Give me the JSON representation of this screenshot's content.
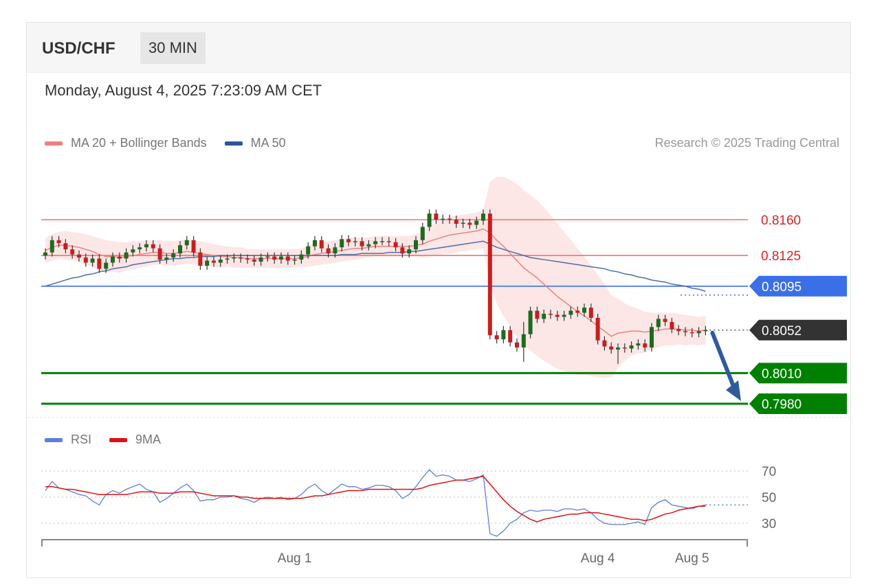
{
  "header": {
    "pair": "USD/CHF",
    "interval": "30 MIN",
    "datetime": "Monday, August 4, 2025 7:23:09 AM CET"
  },
  "legend": {
    "main": [
      {
        "label": "MA 20 + Bollinger Bands",
        "color": "#f08080"
      },
      {
        "label": "MA 50",
        "color": "#2f5597"
      }
    ],
    "rsi": [
      {
        "label": "RSI",
        "color": "#5b7fe0"
      },
      {
        "label": "9MA",
        "color": "#e01010"
      }
    ]
  },
  "credit": "Research © 2025 Trading Central",
  "colors": {
    "up_candle": "#1e6b1e",
    "down_candle": "#c81e1e",
    "ma20": "#f08080",
    "band": "#fde3e3",
    "ma50": "#4a6fa5",
    "resistance": "#f07070",
    "pivot": "#3a6fe8",
    "support": "#008000",
    "current": "#333333",
    "arrow": "#2f5a9c",
    "rsi": "#5b7fe0",
    "rsi_ma": "#e01010"
  },
  "chart_data": [
    {
      "type": "candlestick",
      "title": "USD/CHF 30 MIN",
      "ylim": [
        0.7975,
        0.8185
      ],
      "levels": [
        {
          "label": "0.8160",
          "value": 0.816,
          "kind": "resistance"
        },
        {
          "label": "0.8125",
          "value": 0.8125,
          "kind": "resistance"
        },
        {
          "label": "0.8095",
          "value": 0.8095,
          "kind": "pivot"
        },
        {
          "label": "0.8052",
          "value": 0.8052,
          "kind": "current"
        },
        {
          "label": "0.8010",
          "value": 0.801,
          "kind": "support"
        },
        {
          "label": "0.7980",
          "value": 0.798,
          "kind": "support"
        }
      ],
      "candle_close": [
        0.8128,
        0.814,
        0.8137,
        0.8131,
        0.8126,
        0.8123,
        0.8118,
        0.8122,
        0.8112,
        0.8118,
        0.8124,
        0.8122,
        0.8128,
        0.8131,
        0.8133,
        0.8136,
        0.8132,
        0.8121,
        0.8123,
        0.8127,
        0.8135,
        0.814,
        0.8128,
        0.8115,
        0.812,
        0.8118,
        0.8121,
        0.8122,
        0.8123,
        0.8122,
        0.8121,
        0.8119,
        0.8123,
        0.8124,
        0.8121,
        0.8124,
        0.812,
        0.8121,
        0.8126,
        0.8134,
        0.814,
        0.8132,
        0.8127,
        0.8133,
        0.8141,
        0.8138,
        0.8139,
        0.8134,
        0.8136,
        0.8139,
        0.8139,
        0.8138,
        0.8133,
        0.8127,
        0.8131,
        0.814,
        0.8153,
        0.8166,
        0.816,
        0.8161,
        0.816,
        0.8156,
        0.8157,
        0.8155,
        0.8159,
        0.8166,
        0.8047,
        0.8043,
        0.8052,
        0.804,
        0.8035,
        0.8048,
        0.8071,
        0.8063,
        0.8068,
        0.8067,
        0.8065,
        0.8067,
        0.8071,
        0.8069,
        0.8074,
        0.8064,
        0.8042,
        0.8036,
        0.8033,
        0.8035,
        0.8034,
        0.8037,
        0.8039,
        0.8035,
        0.8055,
        0.8063,
        0.806,
        0.8053,
        0.8051,
        0.805,
        0.8049,
        0.8051,
        0.8052
      ],
      "ma20": [
        0.813,
        0.8133,
        0.8135,
        0.8135,
        0.8134,
        0.8133,
        0.8131,
        0.8129,
        0.8126,
        0.8124,
        0.8124,
        0.8123,
        0.8124,
        0.8125,
        0.8126,
        0.8127,
        0.8128,
        0.8128,
        0.8127,
        0.8127,
        0.8128,
        0.8129,
        0.8128,
        0.8127,
        0.8126,
        0.8125,
        0.8124,
        0.8124,
        0.8123,
        0.8123,
        0.8122,
        0.8122,
        0.8122,
        0.8122,
        0.8122,
        0.8122,
        0.8122,
        0.8122,
        0.8123,
        0.8124,
        0.8126,
        0.8127,
        0.8128,
        0.8129,
        0.813,
        0.8131,
        0.8132,
        0.8132,
        0.8133,
        0.8134,
        0.8134,
        0.8134,
        0.8134,
        0.8134,
        0.8134,
        0.8135,
        0.8136,
        0.8139,
        0.8141,
        0.8143,
        0.8145,
        0.8146,
        0.8147,
        0.8148,
        0.8149,
        0.8151,
        0.8147,
        0.814,
        0.8134,
        0.8127,
        0.812,
        0.8113,
        0.8108,
        0.8103,
        0.8097,
        0.8091,
        0.8085,
        0.808,
        0.8075,
        0.807,
        0.8066,
        0.8061,
        0.8056,
        0.8051,
        0.8046,
        0.8049,
        0.805,
        0.8051,
        0.8051,
        0.805,
        0.8051,
        0.8052,
        0.8053,
        0.8053,
        0.8053,
        0.8052,
        0.8052,
        0.8051,
        0.8052
      ],
      "ma50": [
        0.8095,
        0.8097,
        0.8099,
        0.8101,
        0.8103,
        0.8104,
        0.8106,
        0.8107,
        0.8109,
        0.811,
        0.8112,
        0.8113,
        0.8114,
        0.8116,
        0.8117,
        0.8118,
        0.8119,
        0.812,
        0.8121,
        0.8122,
        0.8122,
        0.8123,
        0.8123,
        0.8124,
        0.8124,
        0.8124,
        0.8125,
        0.8125,
        0.8125,
        0.8125,
        0.8125,
        0.8125,
        0.8125,
        0.8125,
        0.8125,
        0.8125,
        0.8125,
        0.8125,
        0.8125,
        0.8125,
        0.8125,
        0.8125,
        0.8125,
        0.8125,
        0.8126,
        0.8126,
        0.8126,
        0.8127,
        0.8127,
        0.8127,
        0.8127,
        0.8128,
        0.8128,
        0.8128,
        0.8129,
        0.8129,
        0.813,
        0.8131,
        0.8132,
        0.8133,
        0.8134,
        0.8135,
        0.8136,
        0.8137,
        0.8138,
        0.8139,
        0.8136,
        0.8133,
        0.8131,
        0.8129,
        0.8127,
        0.8125,
        0.8123,
        0.8122,
        0.8121,
        0.812,
        0.8119,
        0.8118,
        0.8117,
        0.8116,
        0.8115,
        0.8114,
        0.8113,
        0.8112,
        0.811,
        0.8109,
        0.8107,
        0.8106,
        0.8104,
        0.8103,
        0.8101,
        0.81,
        0.8099,
        0.8097,
        0.8096,
        0.8095,
        0.8093,
        0.8092,
        0.809
      ],
      "band_width": [
        0.0012,
        0.0013,
        0.0013,
        0.0014,
        0.0014,
        0.0014,
        0.0015,
        0.0015,
        0.0016,
        0.0016,
        0.0015,
        0.0015,
        0.0014,
        0.0014,
        0.0013,
        0.0013,
        0.0012,
        0.0012,
        0.0012,
        0.0012,
        0.0012,
        0.0012,
        0.0012,
        0.0012,
        0.0012,
        0.0011,
        0.0011,
        0.001,
        0.001,
        0.001,
        0.0009,
        0.0009,
        0.0009,
        0.0009,
        0.0009,
        0.0009,
        0.0009,
        0.0009,
        0.0009,
        0.001,
        0.0011,
        0.0011,
        0.0011,
        0.0011,
        0.0011,
        0.0011,
        0.0011,
        0.001,
        0.001,
        0.001,
        0.001,
        0.001,
        0.001,
        0.001,
        0.001,
        0.0011,
        0.0013,
        0.0015,
        0.0016,
        0.0017,
        0.0018,
        0.0018,
        0.0018,
        0.0018,
        0.0018,
        0.0019,
        0.005,
        0.0062,
        0.0068,
        0.0072,
        0.0075,
        0.0076,
        0.0076,
        0.0076,
        0.0075,
        0.0073,
        0.0071,
        0.0068,
        0.0065,
        0.0062,
        0.0058,
        0.0054,
        0.005,
        0.0046,
        0.004,
        0.0034,
        0.0028,
        0.0024,
        0.0022,
        0.002,
        0.0018,
        0.0017,
        0.0016,
        0.0016,
        0.0015,
        0.0015,
        0.0014,
        0.0014,
        0.0014
      ],
      "forecast": {
        "from": 0.8052,
        "to": 0.798
      }
    },
    {
      "type": "line",
      "title": "RSI",
      "ylim": [
        10,
        80
      ],
      "yticks": [
        70,
        50,
        30
      ],
      "x_ticks": [
        {
          "label": "Aug 1",
          "index": 37
        },
        {
          "label": "Aug 4",
          "index": 82
        },
        {
          "label": "Aug 5",
          "index": 96
        }
      ],
      "series": [
        {
          "name": "RSI",
          "values": [
            55,
            62,
            57,
            56,
            54,
            52,
            51,
            47,
            44,
            52,
            55,
            53,
            56,
            58,
            60,
            56,
            54,
            46,
            49,
            53,
            57,
            60,
            55,
            47,
            48,
            48,
            50,
            50,
            51,
            49,
            48,
            46,
            49,
            50,
            49,
            50,
            48,
            49,
            52,
            57,
            60,
            55,
            52,
            56,
            60,
            58,
            58,
            56,
            57,
            59,
            59,
            58,
            55,
            49,
            52,
            58,
            65,
            71,
            66,
            67,
            66,
            63,
            63,
            62,
            64,
            67,
            22,
            20,
            24,
            30,
            33,
            38,
            40,
            39,
            40,
            40,
            39,
            41,
            41,
            40,
            41,
            38,
            33,
            30,
            29,
            29,
            29,
            30,
            31,
            29,
            42,
            46,
            48,
            44,
            43,
            42,
            41,
            43,
            44
          ]
        },
        {
          "name": "9MA",
          "values": [
            58,
            58,
            57,
            56,
            56,
            55,
            54,
            53,
            52,
            52,
            52,
            52,
            52,
            53,
            54,
            54,
            54,
            53,
            53,
            53,
            54,
            54,
            54,
            53,
            52,
            51,
            51,
            51,
            51,
            50,
            50,
            49,
            49,
            49,
            49,
            49,
            49,
            49,
            49,
            50,
            51,
            51,
            52,
            53,
            54,
            55,
            55,
            55,
            56,
            56,
            56,
            56,
            56,
            56,
            56,
            56,
            57,
            59,
            60,
            61,
            62,
            63,
            63,
            64,
            65,
            66,
            60,
            54,
            48,
            43,
            39,
            36,
            33,
            31,
            33,
            34,
            35,
            36,
            37,
            37,
            38,
            38,
            38,
            37,
            36,
            35,
            34,
            33,
            33,
            32,
            33,
            35,
            37,
            38,
            40,
            41,
            42,
            43,
            43
          ]
        }
      ]
    }
  ]
}
